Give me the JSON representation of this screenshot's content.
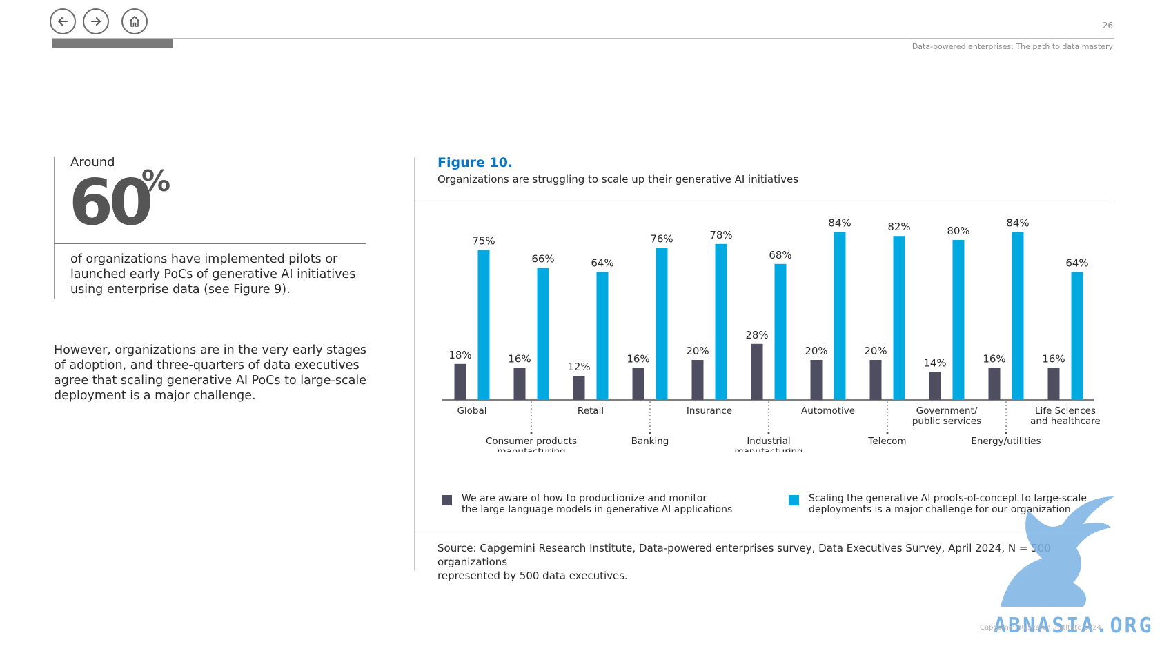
{
  "nav": {
    "back_icon": "arrow-left-icon",
    "forward_icon": "arrow-right-icon",
    "home_icon": "home-icon"
  },
  "header": {
    "page_number": "26",
    "doc_title": "Data-powered enterprises: The path to data mastery"
  },
  "stat": {
    "prefix": "Around",
    "number": "60",
    "unit": "%",
    "description": "of organizations have implemented pilots or launched early PoCs of generative AI initiatives using enterprise data (see Figure 9)."
  },
  "body_text": "However, organizations are in the very early stages of adoption, and three-quarters of data executives agree that scaling generative AI PoCs to large-scale deployment is a major challenge.",
  "figure": {
    "label": "Figure 10.",
    "title": "Organizations are struggling to scale up their generative AI initiatives"
  },
  "chart_data": {
    "type": "bar",
    "categories": [
      "Global",
      "Consumer products manufacturing",
      "Retail",
      "Banking",
      "Insurance",
      "Industrial manufacturing",
      "Automotive",
      "Telecom",
      "Government/ public services",
      "Energy/utilities",
      "Life Sciences and healthcare"
    ],
    "category_label_lines": [
      [
        "Global"
      ],
      [
        "Consumer products",
        "manufacturing"
      ],
      [
        "Retail"
      ],
      [
        "Banking"
      ],
      [
        "Insurance"
      ],
      [
        "Industrial",
        "manufacturing"
      ],
      [
        "Automotive"
      ],
      [
        "Telecom"
      ],
      [
        "Government/",
        "public services"
      ],
      [
        "Energy/utilities"
      ],
      [
        "Life Sciences",
        "and healthcare"
      ]
    ],
    "series": [
      {
        "name": "We are aware of how to productionize and monitor the large language models in generative AI applications",
        "color": "#4f4e60",
        "values": [
          18,
          16,
          12,
          16,
          20,
          28,
          20,
          20,
          14,
          16,
          16
        ]
      },
      {
        "name": "Scaling the generative AI proofs-of-concept to large-scale deployments is a major challenge for our organization",
        "color": "#00a9e0",
        "values": [
          75,
          66,
          64,
          76,
          78,
          68,
          84,
          82,
          80,
          84,
          64
        ]
      }
    ],
    "value_suffix": "%",
    "ylim": [
      0,
      100
    ],
    "grid": false,
    "legend_position": "bottom"
  },
  "legend": {
    "item1_line1": "We are aware of how to productionize and monitor",
    "item1_line2": "the large language models in generative AI applications",
    "item2_line1": "Scaling the generative AI proofs-of-concept to large-scale",
    "item2_line2": "deployments is a major challenge for our organization"
  },
  "source": {
    "line1": "Source: Capgemini Research Institute, Data-powered enterprises survey, Data Executives Survey, April 2024, N = 500 organizations",
    "line2": "represented by 500 data executives."
  },
  "watermark": {
    "text": "ABNASIA.ORG",
    "footer": "Capgemini Research Institute 2024"
  }
}
